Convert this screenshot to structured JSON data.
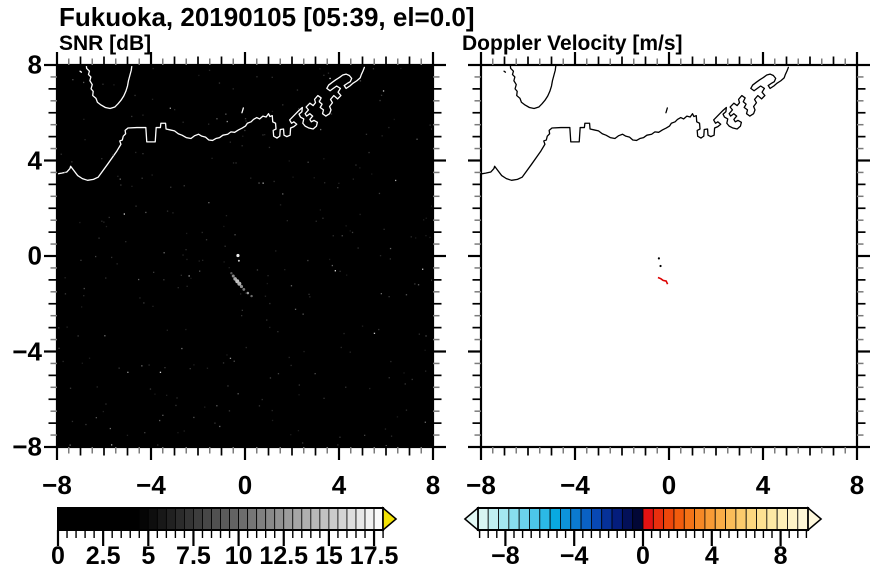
{
  "title": "Fukuoka, 20190105 [05:39, el=0.0]",
  "panels": {
    "snr": {
      "title": "SNR [dB]",
      "bg": "#000000",
      "coast": "#ffffff"
    },
    "doppler": {
      "title": "Doppler Velocity [m/s]",
      "bg": "#ffffff",
      "coast": "#000000"
    }
  },
  "axis": {
    "min": -8,
    "max": 8,
    "minor_step": 0.5,
    "major_values": [
      -8,
      -4,
      0,
      4,
      8
    ],
    "x_tick_labels": [
      "−8",
      "−4",
      "0",
      "4",
      "8"
    ],
    "y_tick_labels": [
      "8",
      "4",
      "0",
      "−4",
      "−8"
    ],
    "minor_tick_color": "#7b7b7b",
    "major_tick_color": "#000000"
  },
  "coastline": {
    "island": [
      [
        -6.76,
        8.1
      ],
      [
        -6.74,
        7.86
      ],
      [
        -6.62,
        7.74
      ],
      [
        -6.66,
        7.6
      ],
      [
        -6.56,
        7.5
      ],
      [
        -6.6,
        7.34
      ],
      [
        -6.5,
        7.18
      ],
      [
        -6.55,
        7.0
      ],
      [
        -6.46,
        6.9
      ],
      [
        -6.48,
        6.72
      ],
      [
        -6.34,
        6.6
      ],
      [
        -6.28,
        6.44
      ],
      [
        -6.12,
        6.32
      ],
      [
        -5.94,
        6.22
      ],
      [
        -5.74,
        6.18
      ],
      [
        -5.54,
        6.24
      ],
      [
        -5.4,
        6.38
      ],
      [
        -5.28,
        6.52
      ],
      [
        -5.16,
        6.7
      ],
      [
        -5.07,
        6.9
      ],
      [
        -5.0,
        7.12
      ],
      [
        -4.96,
        7.34
      ],
      [
        -4.9,
        7.56
      ],
      [
        -4.84,
        7.78
      ],
      [
        -4.8,
        8.1
      ]
    ],
    "island_speck": [
      [
        -7.02,
        7.74
      ],
      [
        -6.96,
        7.7
      ]
    ],
    "small_mark": [
      [
        -0.13,
        6.0
      ],
      [
        -0.07,
        6.2
      ]
    ],
    "mainland": [
      [
        -8.1,
        3.42
      ],
      [
        -7.8,
        3.47
      ],
      [
        -7.58,
        3.52
      ],
      [
        -7.45,
        3.66
      ],
      [
        -7.42,
        3.76
      ],
      [
        -7.3,
        3.6
      ],
      [
        -7.12,
        3.37
      ],
      [
        -6.92,
        3.24
      ],
      [
        -6.7,
        3.17
      ],
      [
        -6.45,
        3.21
      ],
      [
        -6.25,
        3.3
      ],
      [
        -5.85,
        3.84
      ],
      [
        -5.45,
        4.4
      ],
      [
        -5.28,
        4.68
      ],
      [
        -5.33,
        4.82
      ],
      [
        -5.22,
        4.86
      ],
      [
        -5.18,
        5.02
      ],
      [
        -5.08,
        5.12
      ],
      [
        -5.1,
        5.26
      ],
      [
        -4.98,
        5.36
      ],
      [
        -4.6,
        5.38
      ],
      [
        -4.22,
        5.38
      ],
      [
        -4.2,
        5.08
      ],
      [
        -4.18,
        4.78
      ],
      [
        -3.82,
        4.78
      ],
      [
        -3.8,
        5.08
      ],
      [
        -3.78,
        5.38
      ],
      [
        -3.6,
        5.38
      ],
      [
        -3.58,
        5.56
      ],
      [
        -3.38,
        5.56
      ],
      [
        -3.36,
        5.32
      ],
      [
        -3.18,
        5.28
      ],
      [
        -3.0,
        5.24
      ],
      [
        -2.84,
        5.12
      ],
      [
        -2.68,
        5.06
      ],
      [
        -2.5,
        4.96
      ],
      [
        -2.3,
        4.92
      ],
      [
        -2.14,
        5.04
      ],
      [
        -1.98,
        5.1
      ],
      [
        -1.84,
        5.02
      ],
      [
        -1.68,
        4.98
      ],
      [
        -1.54,
        4.86
      ],
      [
        -1.38,
        4.84
      ],
      [
        -1.24,
        4.92
      ],
      [
        -1.08,
        4.96
      ],
      [
        -0.94,
        5.06
      ],
      [
        -0.74,
        5.1
      ],
      [
        -0.6,
        5.2
      ],
      [
        -0.44,
        5.18
      ],
      [
        -0.28,
        5.28
      ],
      [
        -0.12,
        5.36
      ],
      [
        0.02,
        5.44
      ],
      [
        0.1,
        5.56
      ],
      [
        0.26,
        5.62
      ],
      [
        0.36,
        5.72
      ],
      [
        0.5,
        5.8
      ],
      [
        0.62,
        5.74
      ],
      [
        0.76,
        5.86
      ],
      [
        0.9,
        5.82
      ],
      [
        1.0,
        5.96
      ],
      [
        1.06,
        5.84
      ],
      [
        1.16,
        5.88
      ],
      [
        1.18,
        5.62
      ],
      [
        1.3,
        5.56
      ],
      [
        1.32,
        5.32
      ],
      [
        1.2,
        5.26
      ],
      [
        1.22,
        5.02
      ],
      [
        1.36,
        4.94
      ],
      [
        1.48,
        5.02
      ],
      [
        1.5,
        5.3
      ],
      [
        1.64,
        5.32
      ],
      [
        1.66,
        5.06
      ],
      [
        1.78,
        5.0
      ],
      [
        1.92,
        5.06
      ],
      [
        1.94,
        5.36
      ],
      [
        2.08,
        5.42
      ],
      [
        2.2,
        5.52
      ],
      [
        2.08,
        5.62
      ],
      [
        1.98,
        5.56
      ],
      [
        1.9,
        5.7
      ],
      [
        2.02,
        5.82
      ],
      [
        2.16,
        5.96
      ],
      [
        2.3,
        6.1
      ],
      [
        2.44,
        6.22
      ],
      [
        2.42,
        6.04
      ],
      [
        2.3,
        5.94
      ],
      [
        2.36,
        5.82
      ],
      [
        2.5,
        5.74
      ],
      [
        2.46,
        5.56
      ],
      [
        2.56,
        5.44
      ],
      [
        2.72,
        5.36
      ],
      [
        2.9,
        5.32
      ],
      [
        3.04,
        5.44
      ],
      [
        3.08,
        5.6
      ],
      [
        2.94,
        5.68
      ],
      [
        2.82,
        5.62
      ],
      [
        2.76,
        5.72
      ],
      [
        2.88,
        5.86
      ],
      [
        2.76,
        5.96
      ],
      [
        2.62,
        5.86
      ],
      [
        2.56,
        5.96
      ],
      [
        2.7,
        6.12
      ],
      [
        2.6,
        6.24
      ],
      [
        2.76,
        6.4
      ],
      [
        2.9,
        6.3
      ],
      [
        3.0,
        6.42
      ],
      [
        2.96,
        6.56
      ],
      [
        3.1,
        6.72
      ],
      [
        3.24,
        6.62
      ],
      [
        3.16,
        6.46
      ],
      [
        3.28,
        6.36
      ],
      [
        3.2,
        6.22
      ],
      [
        3.34,
        6.12
      ],
      [
        3.3,
        5.96
      ],
      [
        3.44,
        5.86
      ],
      [
        3.6,
        5.96
      ],
      [
        3.66,
        6.12
      ],
      [
        3.6,
        6.26
      ],
      [
        3.72,
        6.42
      ],
      [
        3.64,
        6.56
      ],
      [
        3.78,
        6.72
      ],
      [
        3.94,
        6.58
      ],
      [
        4.08,
        6.72
      ],
      [
        3.96,
        6.86
      ],
      [
        4.06,
        7.02
      ],
      [
        3.9,
        7.12
      ],
      [
        3.76,
        7.02
      ],
      [
        3.62,
        6.92
      ],
      [
        3.48,
        7.02
      ],
      [
        3.56,
        7.16
      ],
      [
        3.72,
        7.28
      ],
      [
        3.86,
        7.38
      ],
      [
        4.02,
        7.48
      ],
      [
        4.16,
        7.58
      ],
      [
        4.3,
        7.62
      ],
      [
        4.44,
        7.56
      ],
      [
        4.54,
        7.44
      ],
      [
        4.48,
        7.3
      ],
      [
        4.34,
        7.22
      ],
      [
        4.22,
        7.14
      ],
      [
        4.3,
        7.02
      ],
      [
        4.46,
        7.12
      ],
      [
        4.6,
        7.24
      ],
      [
        4.76,
        7.34
      ],
      [
        4.9,
        7.46
      ],
      [
        4.95,
        7.6
      ],
      [
        5.02,
        7.75
      ],
      [
        5.08,
        7.9
      ]
    ]
  },
  "chart_data": [
    {
      "type": "heatmap",
      "panel": "snr",
      "title": "SNR [dB]",
      "xlim": [
        -8,
        8
      ],
      "ylim": [
        -8,
        8
      ],
      "xticks": [
        -8,
        -4,
        0,
        4,
        8
      ],
      "yticks": [
        8,
        4,
        0,
        -4,
        -8
      ],
      "background": "#000000",
      "coast_color": "#ffffff",
      "echo_points": [
        {
          "x": -0.3,
          "y": 0.02,
          "c": "#f0f0f0",
          "r": 1.6
        },
        {
          "x": -0.26,
          "y": -0.2,
          "c": "#c8c8c8",
          "r": 1.0
        },
        {
          "x": -0.58,
          "y": -0.72,
          "c": "#555555",
          "r": 1.2
        },
        {
          "x": -0.5,
          "y": -0.84,
          "c": "#8a8a8a",
          "r": 1.5
        },
        {
          "x": -0.42,
          "y": -0.96,
          "c": "#ababab",
          "r": 1.8
        },
        {
          "x": -0.33,
          "y": -1.06,
          "c": "#c2c2c2",
          "r": 2.0
        },
        {
          "x": -0.24,
          "y": -1.16,
          "c": "#b4b4b4",
          "r": 2.0
        },
        {
          "x": -0.15,
          "y": -1.28,
          "c": "#909090",
          "r": 1.6
        },
        {
          "x": -0.05,
          "y": -1.4,
          "c": "#787878",
          "r": 1.4
        },
        {
          "x": 0.12,
          "y": -1.55,
          "c": "#999999",
          "r": 1.3
        },
        {
          "x": 0.28,
          "y": -1.68,
          "c": "#6a6a6a",
          "r": 1.2
        }
      ],
      "colorbar": {
        "range": [
          0,
          18
        ],
        "segment_step": 0.5,
        "tick_step": 0.5,
        "label_values": [
          0,
          2.5,
          5,
          7.5,
          10,
          12.5,
          15,
          17.5
        ],
        "labels": [
          "0",
          "2.5",
          "5",
          "7.5",
          "10",
          "12.5",
          "15",
          "17.5"
        ],
        "over_arrow_color": "#f2e205",
        "segment_colors": [
          "#000000",
          "#000000",
          "#000000",
          "#000000",
          "#000000",
          "#000000",
          "#000000",
          "#000000",
          "#000000",
          "#050505",
          "#0e0e0e",
          "#181818",
          "#212121",
          "#2b2b2b",
          "#343434",
          "#3d3d3d",
          "#474747",
          "#505050",
          "#5a5a5a",
          "#636363",
          "#6d6d6d",
          "#767676",
          "#808080",
          "#898989",
          "#929292",
          "#9c9c9c",
          "#a5a5a5",
          "#afafaf",
          "#b8b8b8",
          "#c2c2c2",
          "#cbcbcb",
          "#d4d4d4",
          "#dedede",
          "#e7e7e7",
          "#f1f1f1",
          "#fafafa"
        ]
      }
    },
    {
      "type": "heatmap",
      "panel": "doppler",
      "title": "Doppler Velocity [m/s]",
      "xlim": [
        -8,
        8
      ],
      "ylim": [
        -8,
        8
      ],
      "xticks": [
        -8,
        -4,
        0,
        4,
        8
      ],
      "yticks": [
        8,
        4,
        0,
        -4,
        -8
      ],
      "background": "#ffffff",
      "coast_color": "#000000",
      "echo_line": {
        "color": "#dd0000",
        "points": [
          [
            -0.47,
            -0.9
          ],
          [
            -0.35,
            -0.95
          ],
          [
            -0.25,
            -1.02
          ],
          [
            -0.12,
            -1.05
          ],
          [
            -0.06,
            -1.18
          ]
        ]
      },
      "echo_dots": [
        {
          "x": -0.43,
          "y": -0.1,
          "c": "#000000",
          "r": 1.1
        },
        {
          "x": -0.36,
          "y": -0.42,
          "c": "#000000",
          "r": 1.1
        }
      ],
      "colorbar": {
        "range": [
          -9.6,
          9.6
        ],
        "segment_step": 0.6,
        "tick_step": 0.5,
        "label_values": [
          -8,
          -4,
          0,
          4,
          8
        ],
        "labels": [
          "−8",
          "−4",
          "0",
          "4",
          "8"
        ],
        "under_arrow_color": "#e4f9f6",
        "over_arrow_color": "#fff8dc",
        "segment_colors": [
          "#d8f5f2",
          "#bfeff1",
          "#a4e7f0",
          "#88deee",
          "#6bd3ec",
          "#4cc7ea",
          "#2bb9e6",
          "#09a9e0",
          "#0d93da",
          "#0b7ad0",
          "#0a61c4",
          "#0848b4",
          "#063198",
          "#041d7c",
          "#031058",
          "#020736",
          "#e31212",
          "#e92f0e",
          "#ee470b",
          "#f25c0d",
          "#f47317",
          "#f68825",
          "#f89b35",
          "#f9ad47",
          "#fabd59",
          "#fbcb6c",
          "#fcd77f",
          "#fde192",
          "#fde9a5",
          "#feefb7",
          "#fef3c7",
          "#fff7d6"
        ]
      }
    }
  ]
}
